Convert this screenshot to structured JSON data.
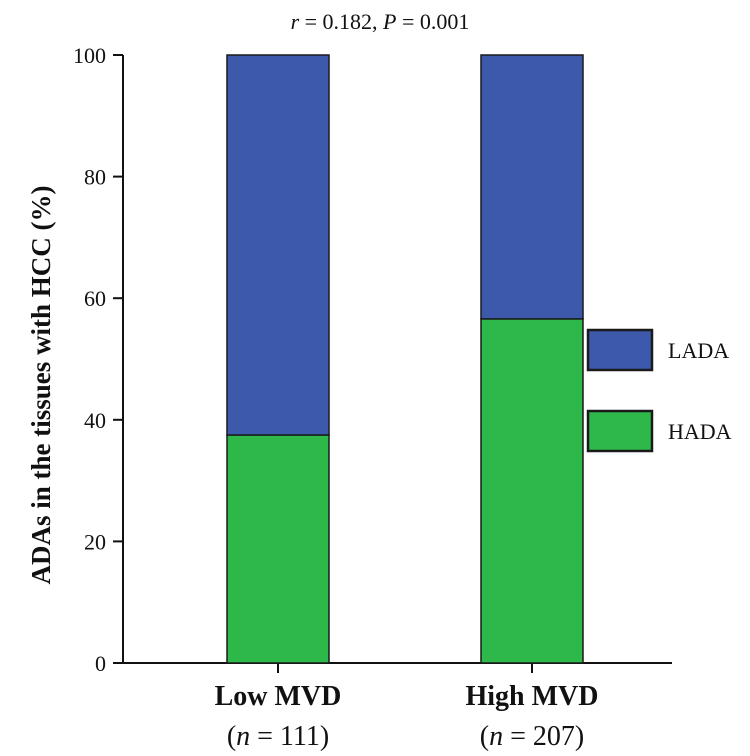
{
  "chart_data": {
    "type": "bar",
    "stacked": true,
    "title_parts": {
      "r_symbol": "r",
      "r_value": " = 0.182, ",
      "p_symbol": "P",
      "p_value": " = 0.001"
    },
    "ylabel": "ADAs in the tissues with HCC (%)",
    "xlabel": "",
    "ylim": [
      0,
      100
    ],
    "yticks": [
      "0",
      "20",
      "40",
      "60",
      "80",
      "100"
    ],
    "categories": [
      {
        "name": "Low MVD",
        "n_prefix": "(",
        "n_symbol": "n",
        "n_value": " = 111)"
      },
      {
        "name": "High MVD",
        "n_prefix": "(",
        "n_symbol": "n",
        "n_value": " = 207)"
      }
    ],
    "series": [
      {
        "name": "HADA",
        "color": "#2fb84a",
        "values": [
          37.5,
          56.6
        ]
      },
      {
        "name": "LADA",
        "color": "#3c59ac",
        "values": [
          62.5,
          43.4
        ]
      }
    ],
    "legend": {
      "placement": "right",
      "order": [
        "LADA",
        "HADA"
      ]
    },
    "grid": false
  }
}
